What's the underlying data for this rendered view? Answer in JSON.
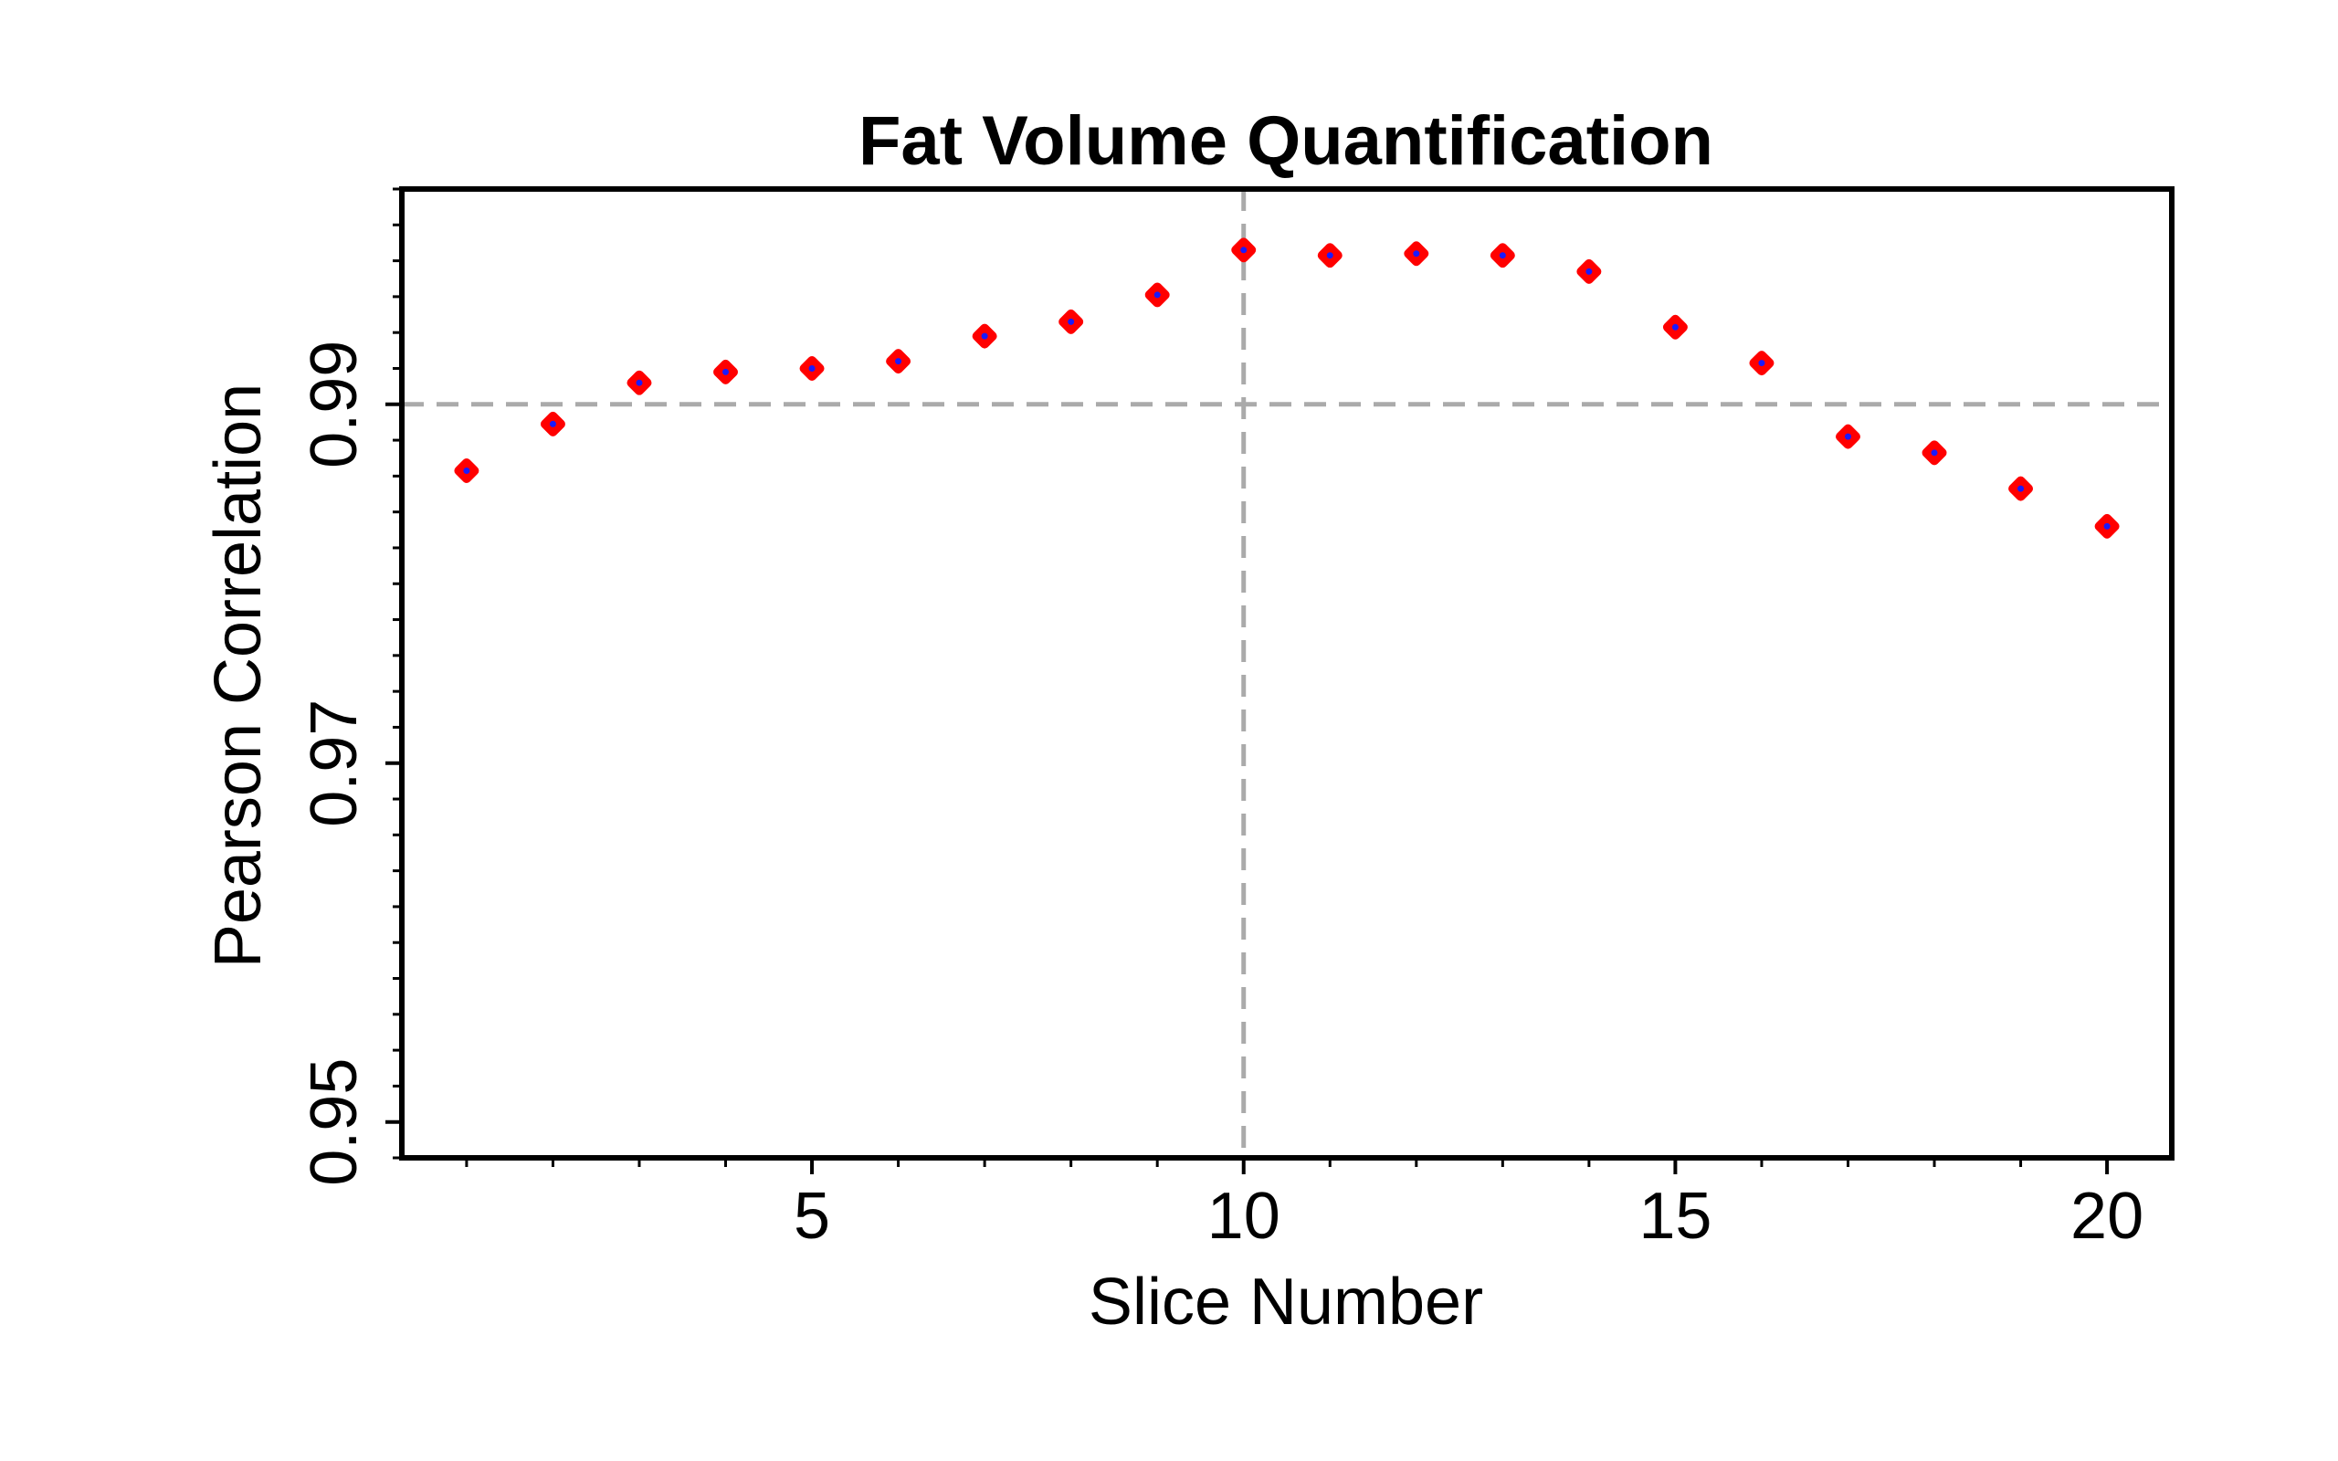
{
  "chart_data": {
    "type": "scatter",
    "title": "Fat Volume Quantification",
    "xlabel": "Slice Number",
    "ylabel": "Pearson Correlation",
    "xlim": [
      0.25,
      20.75
    ],
    "ylim": [
      0.948,
      1.002
    ],
    "x_ticks": [
      5,
      10,
      15,
      20
    ],
    "x_tick_labels": [
      "5",
      "10",
      "15",
      "20"
    ],
    "x_minor_ticks": [
      1,
      2,
      3,
      4,
      6,
      7,
      8,
      9,
      11,
      12,
      13,
      14,
      16,
      17,
      18,
      19
    ],
    "y_ticks": [
      0.95,
      0.97,
      0.99
    ],
    "y_tick_labels": [
      "0.95",
      "0.97",
      "0.99"
    ],
    "y_minor_step": 0.002,
    "reference_lines": {
      "x": 10,
      "y": 0.99
    },
    "grid": false,
    "marker_color": "#ff0000",
    "marker_center_color": "#1a1aff",
    "reference_line_color": "#aaaaaa",
    "series": [
      {
        "x": [
          1,
          2,
          3,
          4,
          5,
          6,
          7,
          8,
          9,
          10,
          11,
          12,
          13,
          14,
          15,
          16,
          17,
          18,
          19,
          20
        ],
        "values": [
          0.9863,
          0.9889,
          0.9912,
          0.9918,
          0.992,
          0.9924,
          0.9938,
          0.9946,
          0.9961,
          0.9986,
          0.9983,
          0.9984,
          0.9983,
          0.9974,
          0.9943,
          0.9923,
          0.9882,
          0.9873,
          0.9853,
          0.9832
        ]
      }
    ]
  }
}
